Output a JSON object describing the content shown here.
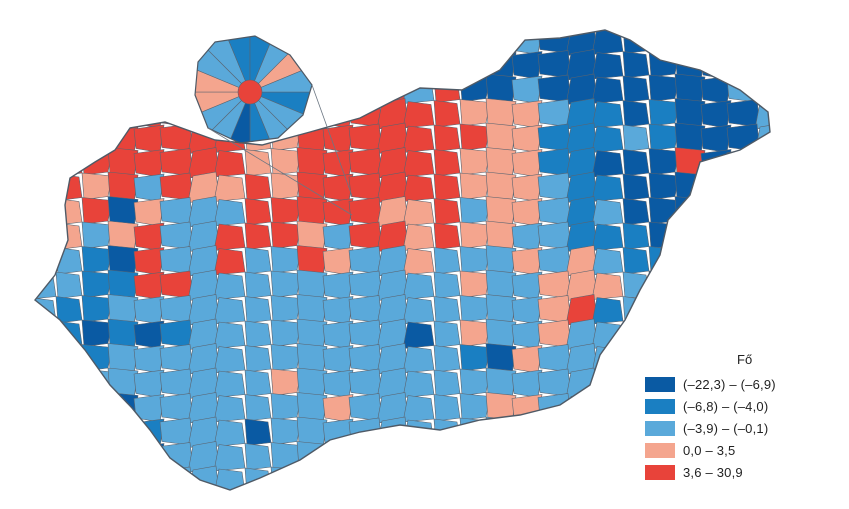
{
  "legend": {
    "title": "Fő",
    "items": [
      {
        "label": "(–22,3) – (–6,9)",
        "color": "#0a5aa3"
      },
      {
        "label": "(–6,8) – (–4,0)",
        "color": "#1a7fc2"
      },
      {
        "label": "(–3,9) – (–0,1)",
        "color": "#5aa9da"
      },
      {
        "label": "0,0  –    3,5",
        "color": "#f4a58e"
      },
      {
        "label": "3,6  –  30,9",
        "color": "#e8433a"
      }
    ]
  },
  "colors": {
    "border": "#5a6470",
    "class_1": "#0a5aa3",
    "class_2": "#1a7fc2",
    "class_3": "#5aa9da",
    "class_4": "#f4a58e",
    "class_5": "#e8433a"
  }
}
